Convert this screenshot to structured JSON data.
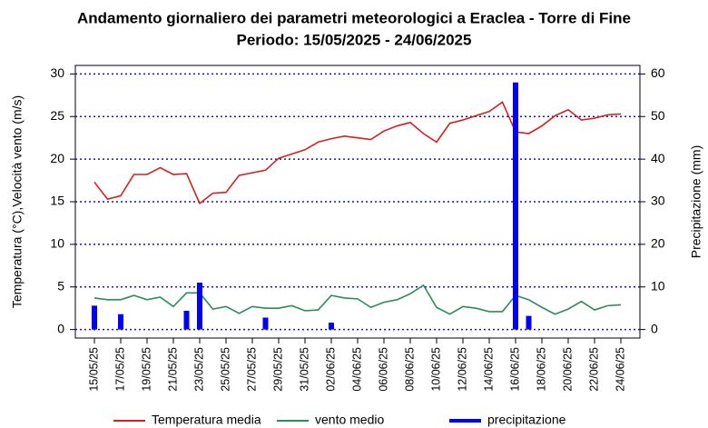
{
  "chart_data": {
    "type": "line",
    "title": "Andamento giornaliero dei parametri meteorologici a Eraclea - Torre di Fine",
    "subtitle": "Periodo:  15/05/2025 -  24/06/2025",
    "ylabel": "Temperatura (°C),Velocità vento (m/s)",
    "y2label": "Precipitazione (mm)",
    "categories": [
      "15/05/25",
      null,
      "17/05/25",
      null,
      "19/05/25",
      null,
      "21/05/25",
      null,
      "23/05/25",
      null,
      "25/05/25",
      null,
      "27/05/25",
      null,
      "29/05/25",
      null,
      "31/05/25",
      null,
      "02/06/25",
      null,
      "04/06/25",
      null,
      "06/06/25",
      null,
      "08/06/25",
      null,
      "10/06/25",
      null,
      "12/06/25",
      null,
      "14/06/25",
      null,
      "16/06/25",
      null,
      "18/06/25",
      null,
      "20/06/25",
      null,
      "22/06/25",
      null,
      "24/06/25"
    ],
    "series": [
      {
        "name": "Temperatura media",
        "color": "#d42020",
        "type": "line",
        "values": [
          17.3,
          15.3,
          15.7,
          18.2,
          18.2,
          19.0,
          18.2,
          18.3,
          14.8,
          16.0,
          16.1,
          18.1,
          18.4,
          18.7,
          20.1,
          20.6,
          21.1,
          22.0,
          22.4,
          22.7,
          22.5,
          22.3,
          23.3,
          23.9,
          24.3,
          23.0,
          22.0,
          24.2,
          24.6,
          25.1,
          25.6,
          26.7,
          23.2,
          23.0,
          23.9,
          25.1,
          25.8,
          24.6,
          24.8,
          25.2,
          25.3
        ]
      },
      {
        "name": "vento medio",
        "color": "#2e8b5a",
        "type": "line",
        "values": [
          3.7,
          3.5,
          3.5,
          4.0,
          3.5,
          3.8,
          2.7,
          4.3,
          4.3,
          2.4,
          2.7,
          1.9,
          2.7,
          2.5,
          2.5,
          2.8,
          2.2,
          2.3,
          4.0,
          3.7,
          3.6,
          2.6,
          3.2,
          3.5,
          4.2,
          5.2,
          2.6,
          1.8,
          2.7,
          2.5,
          2.1,
          2.1,
          4.0,
          3.5,
          2.6,
          1.8,
          2.4,
          3.3,
          2.3,
          2.8,
          2.9
        ]
      },
      {
        "name": "precipitazione",
        "color": "#0000ff",
        "type": "bar",
        "axis": "y2",
        "values": [
          5.6,
          0,
          3.6,
          0,
          0,
          0,
          0,
          4.4,
          11,
          0,
          0,
          0,
          0,
          2.8,
          0,
          0,
          0,
          0,
          1.6,
          0,
          0,
          0,
          0,
          0,
          0,
          0,
          0,
          0,
          0,
          0,
          0,
          0,
          58,
          3.2,
          0,
          0,
          0,
          0,
          0,
          0,
          0
        ]
      }
    ],
    "ylim": [
      -1,
      31
    ],
    "yticks": [
      0,
      5,
      10,
      15,
      20,
      25,
      30
    ],
    "y2lim": [
      -2,
      62
    ],
    "y2ticks": [
      0,
      10,
      20,
      30,
      40,
      50,
      60
    ],
    "grid": true,
    "legend": "bottom"
  }
}
